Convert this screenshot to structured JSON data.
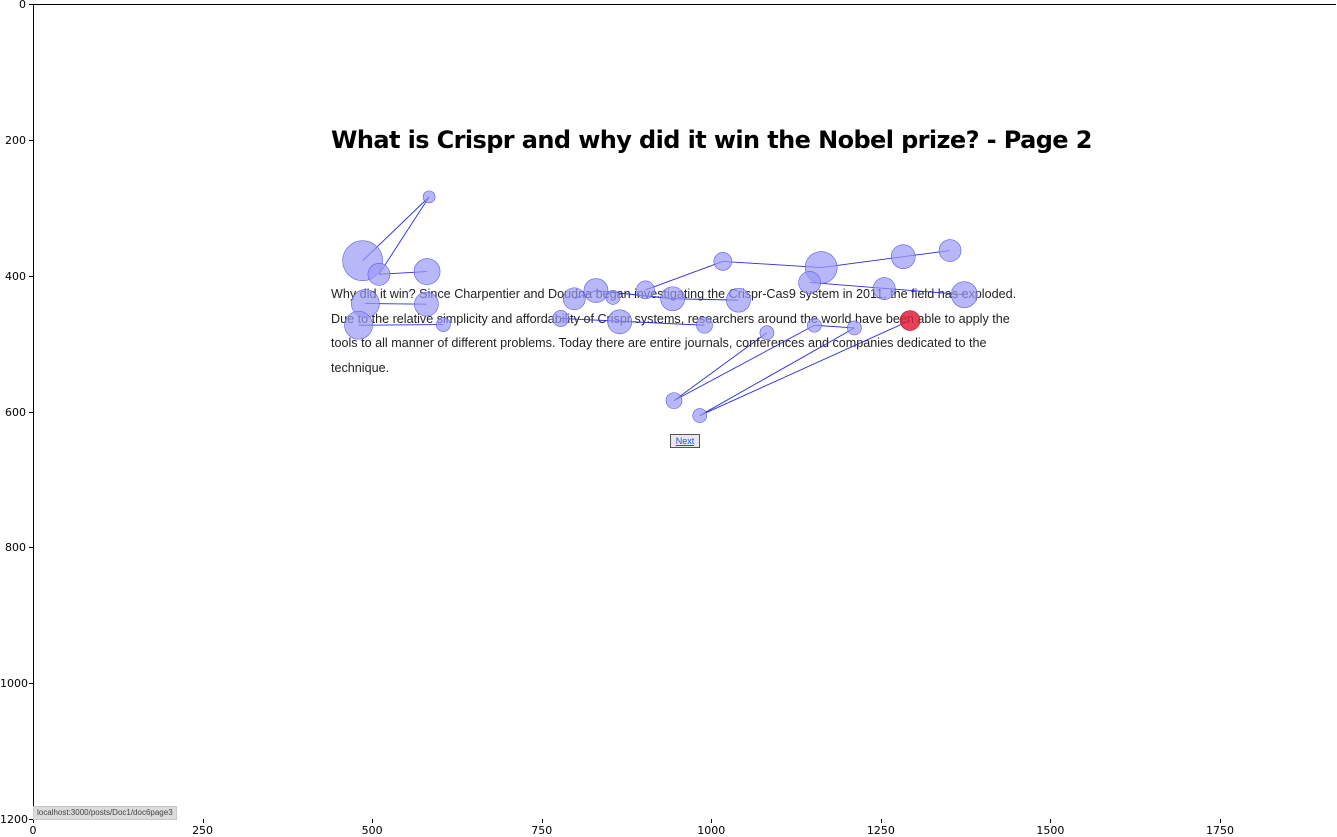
{
  "page": {
    "title": "What is Crispr and why did it win the Nobel prize? - Page 2",
    "paragraph": "Why did it win? Since Charpentier and Doudna began investigating the Crispr-Cas9 system in 2011, the field has exploded. Due to the relative simplicity and affordability of Crispr systems, researchers around the world have been able to apply the tools to all manner of different problems. Today there are entire journals, conferences and companies dedicated to the technique.",
    "next_label": "Next",
    "status_url": "localhost:3000/posts/Doc1/doc6page3"
  },
  "axes": {
    "xticks": [
      "0",
      "250",
      "500",
      "750",
      "1000",
      "1250",
      "1500",
      "1750"
    ],
    "yticks": [
      "0",
      "200",
      "400",
      "600",
      "800",
      "1000",
      "1200"
    ],
    "xlim": [
      0,
      1920
    ],
    "ylim": [
      1200,
      0
    ]
  },
  "colors": {
    "fixation_fill": "#9a9af5",
    "fixation_stroke": "#5a5ae8",
    "saccade": "#2a2ae0",
    "last_fixation": "#e0203a"
  },
  "chart_data": {
    "type": "scatter",
    "description_units": "screen pixels of the recorded page",
    "xlim": [
      0,
      1920
    ],
    "ylim": [
      1200,
      0
    ],
    "fixations": [
      {
        "x": 584,
        "y": 284,
        "d": 6
      },
      {
        "x": 486,
        "y": 378,
        "d": 20
      },
      {
        "x": 510,
        "y": 398,
        "d": 11
      },
      {
        "x": 581,
        "y": 394,
        "d": 13
      },
      {
        "x": 490,
        "y": 441,
        "d": 14
      },
      {
        "x": 580,
        "y": 442,
        "d": 12
      },
      {
        "x": 480,
        "y": 473,
        "d": 14
      },
      {
        "x": 605,
        "y": 472,
        "d": 7
      },
      {
        "x": 778,
        "y": 463,
        "d": 8
      },
      {
        "x": 865,
        "y": 468,
        "d": 12
      },
      {
        "x": 990,
        "y": 473,
        "d": 8
      },
      {
        "x": 1082,
        "y": 484,
        "d": 7
      },
      {
        "x": 945,
        "y": 584,
        "d": 8
      },
      {
        "x": 1152,
        "y": 473,
        "d": 7
      },
      {
        "x": 1211,
        "y": 477,
        "d": 7
      },
      {
        "x": 983,
        "y": 606,
        "d": 7
      },
      {
        "x": 1293,
        "y": 466,
        "d": 10,
        "last": true
      },
      {
        "x": 798,
        "y": 434,
        "d": 11
      },
      {
        "x": 830,
        "y": 422,
        "d": 12
      },
      {
        "x": 855,
        "y": 432,
        "d": 7
      },
      {
        "x": 903,
        "y": 421,
        "d": 9
      },
      {
        "x": 943,
        "y": 434,
        "d": 12
      },
      {
        "x": 1040,
        "y": 436,
        "d": 12
      },
      {
        "x": 1017,
        "y": 379,
        "d": 9
      },
      {
        "x": 1162,
        "y": 388,
        "d": 16
      },
      {
        "x": 1145,
        "y": 410,
        "d": 11
      },
      {
        "x": 1255,
        "y": 419,
        "d": 11
      },
      {
        "x": 1283,
        "y": 372,
        "d": 12
      },
      {
        "x": 1352,
        "y": 363,
        "d": 11
      },
      {
        "x": 1373,
        "y": 428,
        "d": 13
      }
    ],
    "saccades": [
      [
        584,
        284,
        486,
        378
      ],
      [
        584,
        284,
        510,
        398
      ],
      [
        510,
        398,
        581,
        394
      ],
      [
        490,
        441,
        580,
        442
      ],
      [
        480,
        473,
        605,
        472
      ],
      [
        778,
        463,
        990,
        473
      ],
      [
        1082,
        484,
        945,
        584
      ],
      [
        945,
        584,
        1152,
        473
      ],
      [
        983,
        606,
        1211,
        477
      ],
      [
        983,
        606,
        1293,
        466
      ],
      [
        1152,
        473,
        1211,
        477
      ],
      [
        830,
        422,
        943,
        434
      ],
      [
        903,
        421,
        1017,
        379
      ],
      [
        1017,
        379,
        1162,
        388
      ],
      [
        1162,
        388,
        1352,
        363
      ],
      [
        1145,
        410,
        1373,
        428
      ],
      [
        943,
        434,
        1040,
        436
      ],
      [
        798,
        434,
        830,
        422
      ]
    ]
  }
}
